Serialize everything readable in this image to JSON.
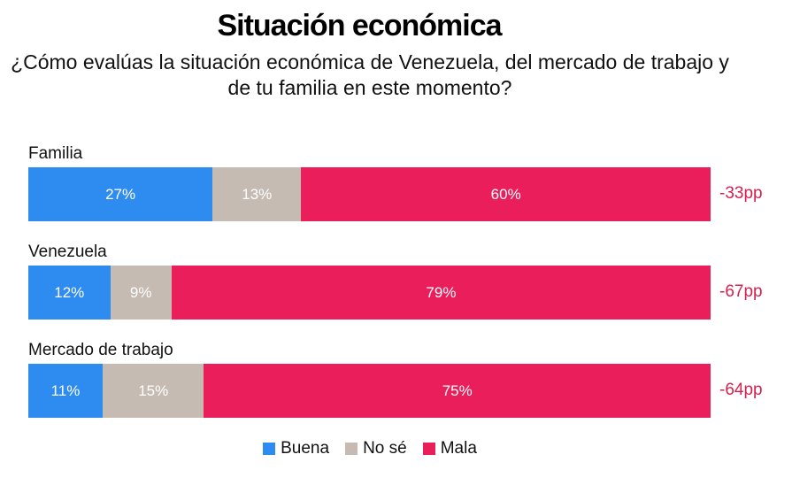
{
  "chart_data": {
    "type": "bar",
    "orientation": "horizontal",
    "stacked": true,
    "normalized": true,
    "title": "Situación económica",
    "subtitle": "¿Cómo evalúas la situación económica de Venezuela, del mercado de trabajo y de tu familia en este momento?",
    "categories": [
      "Familia",
      "Venezuela",
      "Mercado de trabajo"
    ],
    "series": [
      {
        "name": "Buena",
        "color": "#2e8bf0",
        "values": [
          27,
          12,
          11
        ],
        "labels": [
          "27%",
          "12%",
          "11%"
        ]
      },
      {
        "name": "No sé",
        "color": "#c6bbb3",
        "values": [
          13,
          9,
          15
        ],
        "labels": [
          "13%",
          "9%",
          "15%"
        ]
      },
      {
        "name": "Mala",
        "color": "#e91e5a",
        "values": [
          60,
          79,
          75
        ],
        "labels": [
          "60%",
          "79%",
          "75%"
        ]
      }
    ],
    "net_balance": [
      "-33pp",
      "-67pp",
      "-64pp"
    ],
    "net_color": "#d6204f",
    "legend_position": "bottom-center",
    "xlim": [
      0,
      100
    ],
    "grid": false
  }
}
